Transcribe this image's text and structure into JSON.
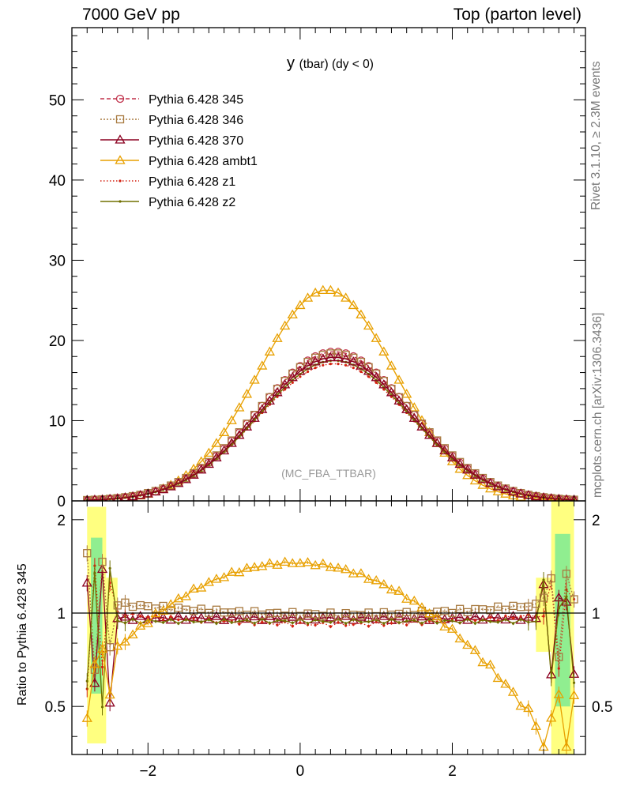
{
  "header": {
    "left": "7000 GeV pp",
    "right": "Top (parton level)"
  },
  "side_labels": {
    "rivet": "Rivet 3.1.10, ≥ 2.3M events",
    "mcplots": "mcplots.cern.ch [arXiv:1306.3436]"
  },
  "chart_data": [
    {
      "type": "line",
      "panel": "main",
      "title_main": "y",
      "title_sub": "(tbar) (dy < 0)",
      "watermark": "(MC_FBA_TTBAR)",
      "xlabel": "",
      "ylabel": "",
      "xlim": [
        -3.0,
        3.75
      ],
      "ylim": [
        0,
        59
      ],
      "yticks": [
        0,
        10,
        20,
        30,
        40,
        50
      ],
      "ytick_labels": [
        "0",
        "10",
        "20",
        "30",
        "40",
        "50"
      ],
      "legend_position": "top-left",
      "x_range_points": [
        -2.8,
        3.6
      ],
      "series": [
        {
          "name": "Pythia 6.428 345",
          "color": "#c0304a",
          "dash": "5,3",
          "marker": "circle",
          "peak": 18.6,
          "mu": 0.45,
          "sigma": 1.0
        },
        {
          "name": "Pythia 6.428 346",
          "color": "#a87a40",
          "dash": "2,2",
          "marker": "square",
          "peak": 18.4,
          "mu": 0.45,
          "sigma": 1.01
        },
        {
          "name": "Pythia 6.428 370",
          "color": "#8b0020",
          "dash": "",
          "marker": "triangle",
          "peak": 17.9,
          "mu": 0.45,
          "sigma": 1.0
        },
        {
          "name": "Pythia 6.428 ambt1",
          "color": "#e8a000",
          "dash": "",
          "marker": "triangle",
          "peak": 26.3,
          "mu": 0.35,
          "sigma": 0.9
        },
        {
          "name": "Pythia 6.428 z1",
          "color": "#d42010",
          "dash": "1.5,2.5",
          "marker": "dot",
          "peak": 17.1,
          "mu": 0.45,
          "sigma": 1.01
        },
        {
          "name": "Pythia 6.428 z2",
          "color": "#707000",
          "dash": "",
          "marker": "dot",
          "peak": 17.5,
          "mu": 0.45,
          "sigma": 1.0
        }
      ]
    },
    {
      "type": "line",
      "panel": "ratio",
      "ylabel": "Ratio to Pythia 6.428 345",
      "xlim": [
        -3.0,
        3.75
      ],
      "ylim": [
        0.35,
        2.3
      ],
      "yticks": [
        0.5,
        1,
        2
      ],
      "ytick_labels": [
        "0.5",
        "1",
        "2"
      ],
      "xticks": [
        -2,
        0,
        2
      ],
      "xtick_labels": [
        "−2",
        "0",
        "2"
      ],
      "reference_line": 1,
      "series": [
        {
          "name": "Pythia 6.428 346",
          "plateau": 1.02
        },
        {
          "name": "Pythia 6.428 370",
          "plateau": 0.965
        },
        {
          "name": "Pythia 6.428 ambt1",
          "plateau": 1.07,
          "center_peak": 1.47
        },
        {
          "name": "Pythia 6.428 z1",
          "plateau": 0.945
        },
        {
          "name": "Pythia 6.428 z2",
          "plateau": 0.96
        }
      ]
    }
  ]
}
